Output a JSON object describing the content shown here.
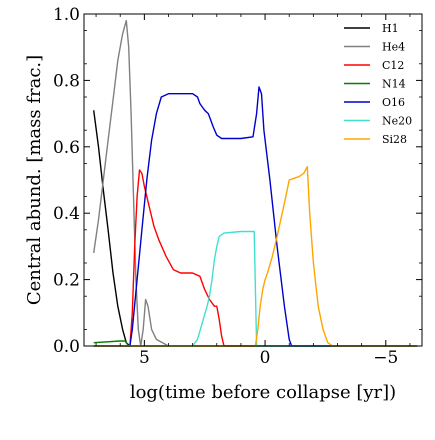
{
  "chart_data": {
    "type": "line",
    "xlabel": "log(time before collapse [yr])",
    "ylabel": "Central abund. [mass frac.]",
    "xlim": [
      7.5,
      -6.5
    ],
    "ylim": [
      0.0,
      1.0
    ],
    "x_ticks": [
      5,
      0,
      -5
    ],
    "x_tick_labels": [
      "5",
      "0",
      "−5"
    ],
    "y_ticks": [
      0.0,
      0.2,
      0.4,
      0.6,
      0.8,
      1.0
    ],
    "y_tick_labels": [
      "0.0",
      "0.2",
      "0.4",
      "0.6",
      "0.8",
      "1.0"
    ],
    "grid": false,
    "legend_position": "top-right",
    "series": [
      {
        "name": "H1",
        "color": "#000000",
        "points": [
          [
            7.1,
            0.71
          ],
          [
            6.9,
            0.6
          ],
          [
            6.7,
            0.47
          ],
          [
            6.5,
            0.35
          ],
          [
            6.3,
            0.22
          ],
          [
            6.1,
            0.12
          ],
          [
            5.9,
            0.05
          ],
          [
            5.75,
            0.01
          ],
          [
            5.6,
            0.0
          ]
        ]
      },
      {
        "name": "He4",
        "color": "#808080",
        "points": [
          [
            7.1,
            0.28
          ],
          [
            6.9,
            0.38
          ],
          [
            6.7,
            0.5
          ],
          [
            6.5,
            0.62
          ],
          [
            6.3,
            0.74
          ],
          [
            6.1,
            0.86
          ],
          [
            5.9,
            0.94
          ],
          [
            5.75,
            0.98
          ],
          [
            5.65,
            0.9
          ],
          [
            5.55,
            0.7
          ],
          [
            5.45,
            0.45
          ],
          [
            5.35,
            0.2
          ],
          [
            5.25,
            0.05
          ],
          [
            5.15,
            0.0
          ],
          [
            5.05,
            0.05
          ],
          [
            4.95,
            0.14
          ],
          [
            4.85,
            0.12
          ],
          [
            4.7,
            0.05
          ],
          [
            4.5,
            0.02
          ],
          [
            4.0,
            0.0
          ]
        ]
      },
      {
        "name": "C12",
        "color": "#ff0000",
        "points": [
          [
            7.1,
            0.0
          ],
          [
            5.6,
            0.0
          ],
          [
            5.5,
            0.1
          ],
          [
            5.4,
            0.3
          ],
          [
            5.3,
            0.45
          ],
          [
            5.2,
            0.53
          ],
          [
            5.1,
            0.52
          ],
          [
            5.0,
            0.48
          ],
          [
            4.8,
            0.42
          ],
          [
            4.6,
            0.36
          ],
          [
            4.4,
            0.32
          ],
          [
            4.1,
            0.27
          ],
          [
            3.8,
            0.23
          ],
          [
            3.5,
            0.22
          ],
          [
            3.0,
            0.22
          ],
          [
            2.7,
            0.21
          ],
          [
            2.5,
            0.17
          ],
          [
            2.3,
            0.14
          ],
          [
            2.1,
            0.12
          ],
          [
            2.0,
            0.12
          ],
          [
            1.9,
            0.08
          ],
          [
            1.8,
            0.03
          ],
          [
            1.7,
            0.0
          ],
          [
            -6.3,
            0.0
          ]
        ]
      },
      {
        "name": "N14",
        "color": "#008000",
        "points": [
          [
            7.1,
            0.01
          ],
          [
            6.0,
            0.015
          ],
          [
            5.8,
            0.015
          ],
          [
            5.65,
            0.0
          ],
          [
            -6.3,
            0.0
          ]
        ]
      },
      {
        "name": "O16",
        "color": "#0000cc",
        "points": [
          [
            7.1,
            0.0
          ],
          [
            5.6,
            0.0
          ],
          [
            5.5,
            0.05
          ],
          [
            5.3,
            0.2
          ],
          [
            5.1,
            0.35
          ],
          [
            4.9,
            0.5
          ],
          [
            4.7,
            0.62
          ],
          [
            4.5,
            0.7
          ],
          [
            4.3,
            0.75
          ],
          [
            4.0,
            0.76
          ],
          [
            3.0,
            0.76
          ],
          [
            2.8,
            0.75
          ],
          [
            2.7,
            0.73
          ],
          [
            2.6,
            0.72
          ],
          [
            2.5,
            0.71
          ],
          [
            2.35,
            0.7
          ],
          [
            2.25,
            0.68
          ],
          [
            2.15,
            0.66
          ],
          [
            2.0,
            0.635
          ],
          [
            1.8,
            0.625
          ],
          [
            1.0,
            0.625
          ],
          [
            0.5,
            0.63
          ],
          [
            0.35,
            0.7
          ],
          [
            0.25,
            0.78
          ],
          [
            0.15,
            0.76
          ],
          [
            0.05,
            0.65
          ],
          [
            -0.2,
            0.5
          ],
          [
            -0.5,
            0.3
          ],
          [
            -0.8,
            0.12
          ],
          [
            -1.0,
            0.02
          ],
          [
            -1.1,
            0.0
          ],
          [
            -6.3,
            0.0
          ]
        ]
      },
      {
        "name": "Ne20",
        "color": "#40e0d0",
        "points": [
          [
            7.1,
            0.0
          ],
          [
            3.0,
            0.0
          ],
          [
            2.8,
            0.02
          ],
          [
            2.6,
            0.07
          ],
          [
            2.4,
            0.12
          ],
          [
            2.3,
            0.15
          ],
          [
            2.2,
            0.2
          ],
          [
            2.1,
            0.26
          ],
          [
            2.0,
            0.3
          ],
          [
            1.9,
            0.33
          ],
          [
            1.7,
            0.34
          ],
          [
            1.0,
            0.345
          ],
          [
            0.45,
            0.345
          ],
          [
            0.35,
            0.0
          ],
          [
            -6.3,
            0.0
          ]
        ]
      },
      {
        "name": "Si28",
        "color": "#ffa500",
        "points": [
          [
            7.1,
            0.0
          ],
          [
            0.4,
            0.0
          ],
          [
            0.3,
            0.05
          ],
          [
            0.2,
            0.12
          ],
          [
            0.1,
            0.17
          ],
          [
            0.0,
            0.2
          ],
          [
            -0.1,
            0.22
          ],
          [
            -0.3,
            0.27
          ],
          [
            -0.5,
            0.33
          ],
          [
            -0.8,
            0.43
          ],
          [
            -1.0,
            0.5
          ],
          [
            -1.2,
            0.505
          ],
          [
            -1.4,
            0.51
          ],
          [
            -1.6,
            0.52
          ],
          [
            -1.75,
            0.54
          ],
          [
            -1.85,
            0.4
          ],
          [
            -2.0,
            0.25
          ],
          [
            -2.2,
            0.12
          ],
          [
            -2.4,
            0.05
          ],
          [
            -2.6,
            0.01
          ],
          [
            -2.8,
            0.0
          ],
          [
            -6.3,
            0.0
          ]
        ]
      }
    ]
  }
}
